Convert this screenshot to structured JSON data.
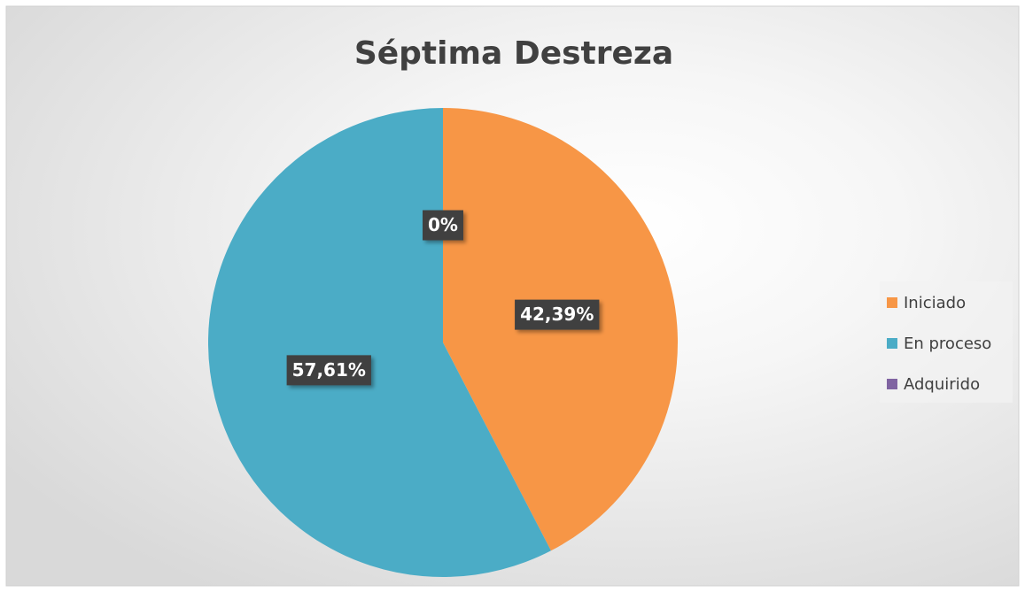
{
  "chart_data": {
    "type": "pie",
    "title": "Séptima Destreza",
    "categories": [
      "Iniciado",
      "En proceso",
      "Adquirido"
    ],
    "values": [
      42.39,
      57.61,
      0
    ],
    "value_labels": [
      "42,39%",
      "57,61%",
      "0%"
    ],
    "colors": [
      "#f79646",
      "#4bacc6",
      "#8064a2"
    ],
    "legend": "right"
  }
}
